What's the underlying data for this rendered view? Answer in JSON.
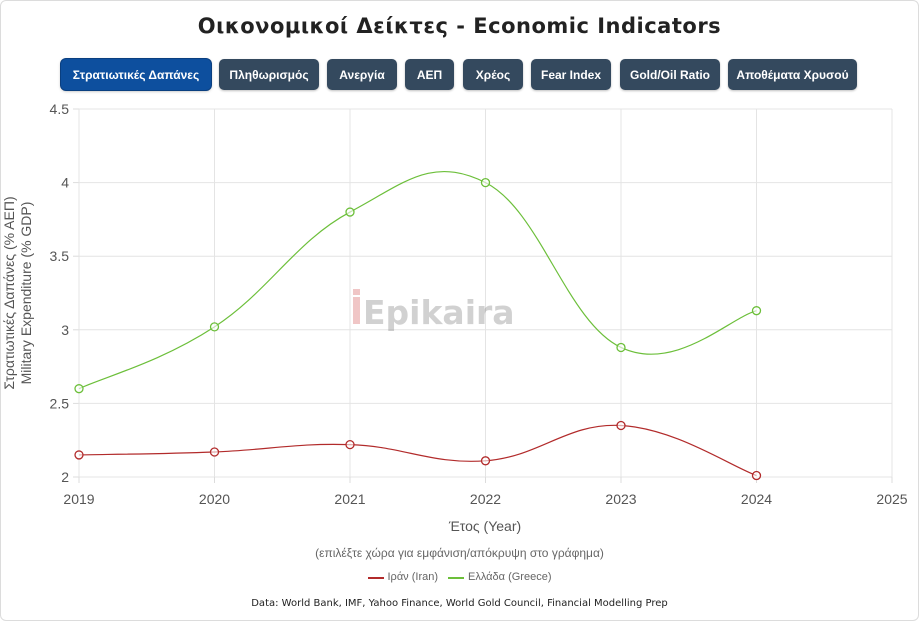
{
  "page_title": "Οικονομικοί Δείκτες - Economic Indicators",
  "tabs": [
    {
      "label": "Στρατιωτικές Δαπάνες",
      "active": true
    },
    {
      "label": "Πληθωρισμός",
      "active": false
    },
    {
      "label": "Ανεργία",
      "active": false
    },
    {
      "label": "ΑΕΠ",
      "active": false
    },
    {
      "label": "Χρέος",
      "active": false
    },
    {
      "label": "Fear Index",
      "active": false
    },
    {
      "label": "Gold/Oil Ratio",
      "active": false
    },
    {
      "label": "Αποθέματα Χρυσού",
      "active": false
    }
  ],
  "watermark": "Epikaira",
  "chart_data": {
    "type": "line",
    "x": [
      2019,
      2020,
      2021,
      2022,
      2023,
      2024
    ],
    "x_ticks": [
      "2019",
      "2020",
      "2021",
      "2022",
      "2023",
      "2024",
      "2025"
    ],
    "xlim": [
      2019,
      2025
    ],
    "ylim": [
      2,
      4.5
    ],
    "y_ticks": [
      "2",
      "2.5",
      "3",
      "3.5",
      "4",
      "4.5"
    ],
    "xlabel": "Έτος (Year)",
    "ylabel": [
      "Στρατιωτικές Δαπάνες (% ΑΕΠ)",
      "Military Expenditure (% GDP)"
    ],
    "grid": true,
    "series": [
      {
        "name": "Ιράν (Iran)",
        "color": "#b22b2b",
        "values": [
          2.15,
          2.17,
          2.22,
          2.11,
          2.35,
          2.01
        ]
      },
      {
        "name": "Ελλάδα (Greece)",
        "color": "#6cbf3a",
        "values": [
          2.6,
          3.02,
          3.8,
          4.0,
          2.88,
          3.13
        ]
      }
    ]
  },
  "legend_hint": "(επιλέξτε χώρα για εμφάνιση/απόκρυψη στο γράφημα)",
  "source_text": "Data: World Bank, IMF, Yahoo Finance, World Gold Council, Financial Modelling Prep"
}
